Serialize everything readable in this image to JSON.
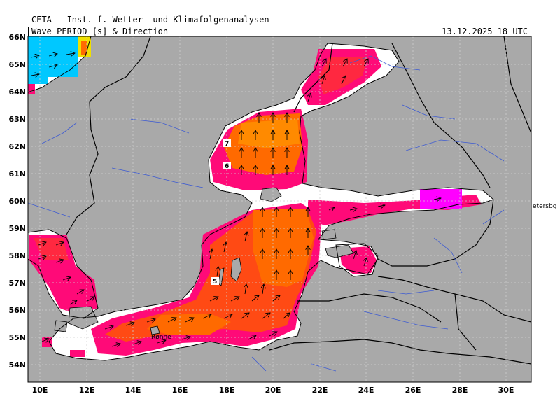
{
  "header": {
    "institute": "CETA — Inst. f. Wetter— und Klimafolgenanalysen —",
    "title": "Wave PERIOD [s] & Direction",
    "timestamp": "13.12.2025 18 UTC"
  },
  "axes": {
    "lat_labels": [
      "66N",
      "65N",
      "64N",
      "63N",
      "62N",
      "61N",
      "60N",
      "59N",
      "58N",
      "57N",
      "56N",
      "55N",
      "54N"
    ],
    "lon_labels": [
      "10E",
      "12E",
      "14E",
      "16E",
      "18E",
      "20E",
      "22E",
      "24E",
      "26E",
      "28E",
      "30E"
    ]
  },
  "contours": {
    "c7": "7",
    "c6": "6",
    "c5": "5"
  },
  "places": {
    "ronne": "Rønne",
    "petersburg": "etersbg"
  },
  "colors": {
    "land": "#a9a9a9",
    "sea": "#ffffff",
    "coast": "#000000",
    "rivers": "#3c5ad2",
    "p_cyan": "#00c8ff",
    "p_yellow": "#f0e000",
    "p_magenta": "#ff00ff",
    "p_pink": "#ff0a78",
    "p_red": "#ff2840",
    "p_orange_red": "#ff4a14",
    "p_orange": "#ff6a00",
    "p_light_orange": "#ff8a00"
  }
}
